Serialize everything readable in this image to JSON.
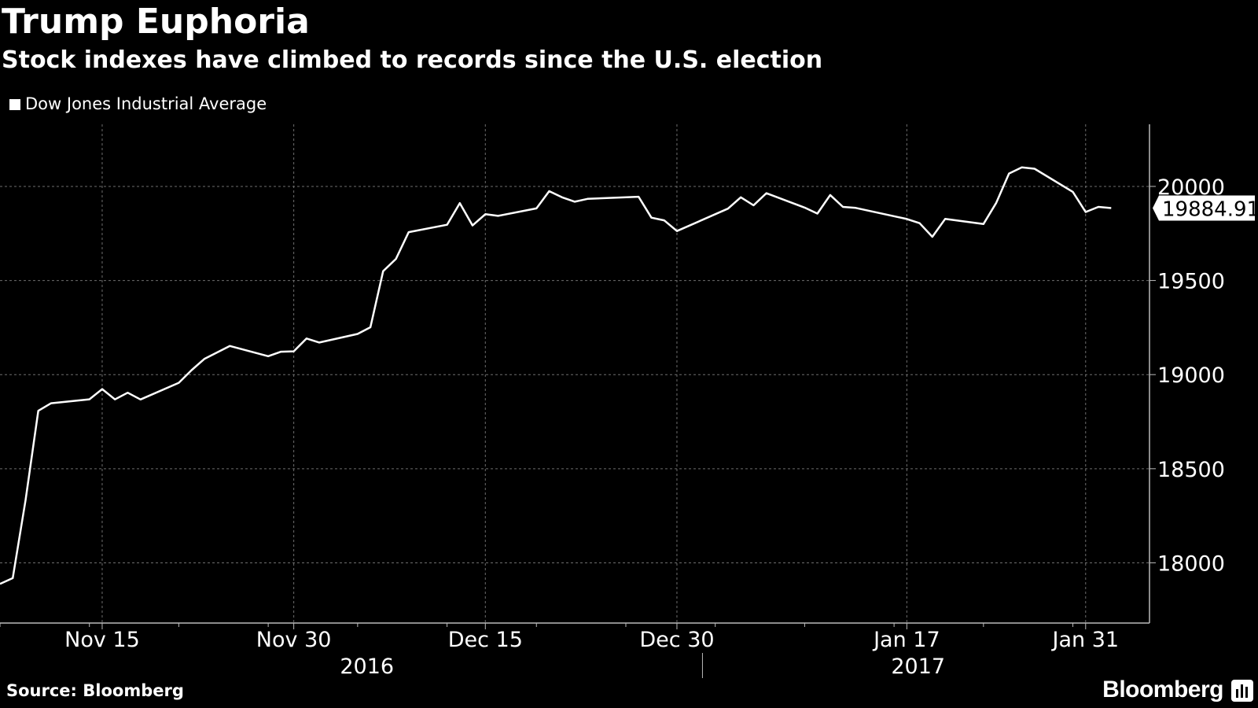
{
  "header": {
    "title": "Trump Euphoria",
    "subtitle": "Stock indexes have climbed to records since the U.S. election"
  },
  "legend": {
    "label": "Dow Jones Industrial Average"
  },
  "footer": {
    "source": "Source: Bloomberg",
    "brand": "Bloomberg"
  },
  "colors": {
    "background": "#000000",
    "line": "#ffffff",
    "grid": "#6e6e6e",
    "axis": "#bbbbbb"
  },
  "chart_data": {
    "type": "line",
    "title": "Trump Euphoria",
    "subtitle": "Stock indexes have climbed to records since the U.S. election",
    "series": [
      {
        "name": "Dow Jones Industrial Average",
        "x": [
          "2016-11-07",
          "2016-11-08",
          "2016-11-09",
          "2016-11-10",
          "2016-11-11",
          "2016-11-14",
          "2016-11-15",
          "2016-11-16",
          "2016-11-17",
          "2016-11-18",
          "2016-11-21",
          "2016-11-22",
          "2016-11-23",
          "2016-11-25",
          "2016-11-28",
          "2016-11-29",
          "2016-11-30",
          "2016-12-01",
          "2016-12-02",
          "2016-12-05",
          "2016-12-06",
          "2016-12-07",
          "2016-12-08",
          "2016-12-09",
          "2016-12-12",
          "2016-12-13",
          "2016-12-14",
          "2016-12-15",
          "2016-12-16",
          "2016-12-19",
          "2016-12-20",
          "2016-12-21",
          "2016-12-22",
          "2016-12-23",
          "2016-12-27",
          "2016-12-28",
          "2016-12-29",
          "2016-12-30",
          "2017-01-03",
          "2017-01-04",
          "2017-01-05",
          "2017-01-06",
          "2017-01-09",
          "2017-01-10",
          "2017-01-11",
          "2017-01-12",
          "2017-01-13",
          "2017-01-17",
          "2017-01-18",
          "2017-01-19",
          "2017-01-20",
          "2017-01-23",
          "2017-01-24",
          "2017-01-25",
          "2017-01-26",
          "2017-01-27",
          "2017-01-30",
          "2017-01-31",
          "2017-02-01",
          "2017-02-02"
        ],
        "values": [
          17888.28,
          17918.62,
          18332.74,
          18807.88,
          18847.66,
          18868.69,
          18923.06,
          18868.14,
          18903.82,
          18867.93,
          18956.69,
          19023.87,
          19083.18,
          19152.14,
          19097.9,
          19121.6,
          19123.58,
          19191.93,
          19170.42,
          19216.24,
          19251.78,
          19549.62,
          19614.81,
          19756.85,
          19796.43,
          19911.21,
          19792.53,
          19852.24,
          19843.41,
          19883.06,
          19974.62,
          19941.96,
          19918.88,
          19933.81,
          19945.04,
          19833.68,
          19819.78,
          19762.6,
          19881.76,
          19942.16,
          19899.29,
          19963.8,
          19887.38,
          19855.53,
          19954.28,
          19891.0,
          19885.73,
          19826.77,
          19804.72,
          19732.4,
          19827.25,
          19799.85,
          19912.71,
          20068.51,
          20100.91,
          20093.78,
          19971.13,
          19864.09,
          19890.94,
          19884.91
        ]
      }
    ],
    "last_value_label": "19884.91",
    "ylim": [
      17680,
      20330
    ],
    "yticks": [
      18000,
      18500,
      19000,
      19500,
      20000
    ],
    "xlim": [
      "2016-11-07",
      "2017-02-05"
    ],
    "xtick_labels": [
      {
        "date": "2016-11-15",
        "label": "Nov 15"
      },
      {
        "date": "2016-11-30",
        "label": "Nov 30"
      },
      {
        "date": "2016-12-15",
        "label": "Dec 15"
      },
      {
        "date": "2016-12-30",
        "label": "Dec 30"
      },
      {
        "date": "2017-01-17",
        "label": "Jan 17"
      },
      {
        "date": "2017-01-31",
        "label": "Jan 31"
      }
    ],
    "year_labels": [
      {
        "label": "2016",
        "position": "center of 2016 segment"
      },
      {
        "label": "2017",
        "position": "center of 2017 segment"
      }
    ],
    "xlabel": "",
    "ylabel": "",
    "grid": true,
    "legend_position": "top-left",
    "y_axis_side": "right"
  }
}
